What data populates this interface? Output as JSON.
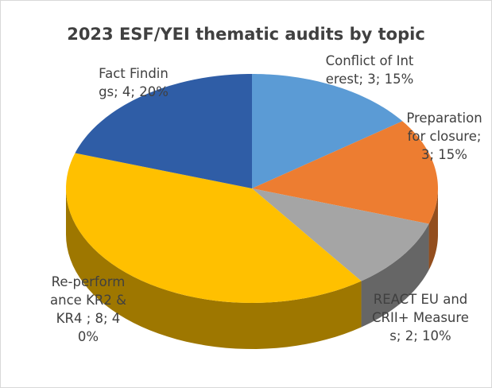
{
  "chart_data": {
    "type": "pie3d",
    "title": "2023 ESF/YEI thematic audits by topic",
    "values": [
      3,
      3,
      2,
      8,
      4
    ],
    "value_labels": [
      "Conflict of Interest; 3; 15%",
      "Preparation for closure; 3; 15%",
      "REACT EU and CRII+ Measures; 2; 10%",
      "Re-performance KR2 & KR4 ; 8; 40%",
      "Fact Findings; 4; 20%"
    ],
    "colors": [
      "#5b9bd5",
      "#ed7d31",
      "#a5a5a5",
      "#ffc000",
      "#2f5da6"
    ]
  }
}
